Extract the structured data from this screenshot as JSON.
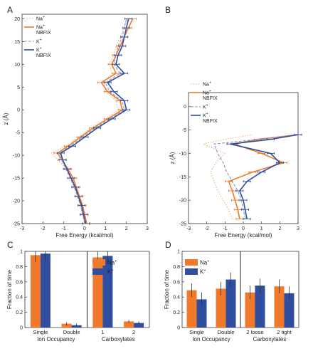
{
  "colors": {
    "orange": "#f07a2b",
    "blue": "#2f4e9f",
    "dashed_blue": "#8c96b8",
    "light_orange": "#f0b27a",
    "axis": "#333333"
  },
  "chart_data": [
    {
      "panel": "A",
      "type": "line",
      "xlabel": "Free Energy (kcal/mol)",
      "ylabel": "z (Å)",
      "xlim": [
        -3,
        3
      ],
      "ylim": [
        -25,
        21
      ],
      "xticks": [
        "-3",
        "-2",
        "-1",
        "0",
        "1",
        "2",
        "3"
      ],
      "yticks": [
        "-25",
        "-20",
        "-15",
        "-10",
        "-5",
        "0",
        "5",
        "10",
        "15",
        "20"
      ],
      "legend_position": "top-left",
      "z": [
        -25,
        -23,
        -21,
        -19,
        -17,
        -15,
        -13,
        -11,
        -9.5,
        -8,
        -6,
        -4,
        -2,
        0,
        2,
        4,
        6,
        8,
        10,
        12,
        14,
        16,
        18,
        20
      ],
      "series": [
        {
          "name": "Na+",
          "style": "dotted-orange",
          "values": [
            0,
            -0.1,
            -0.2,
            -0.3,
            -0.45,
            -0.6,
            -0.85,
            -1.3,
            -1.6,
            -0.9,
            -0.3,
            0.3,
            1.0,
            1.6,
            1.5,
            1.0,
            0.9,
            1.3,
            1.2,
            1.4,
            1.5,
            1.7,
            1.9,
            2.0
          ]
        },
        {
          "name": "Na+",
          "name2": "NBFIX",
          "style": "solid-orange",
          "values": [
            0.1,
            0,
            -0.1,
            -0.25,
            -0.4,
            -0.55,
            -0.8,
            -1.1,
            -1.3,
            -0.8,
            -0.2,
            0.4,
            1.1,
            1.8,
            1.7,
            1.1,
            0.8,
            1.5,
            1.3,
            1.5,
            1.7,
            1.9,
            2.1,
            2.3
          ]
        },
        {
          "name": "K+",
          "style": "dashed-blue",
          "values": [
            0,
            -0.1,
            -0.2,
            -0.35,
            -0.5,
            -0.7,
            -0.9,
            -1.1,
            -1.2,
            -0.7,
            -0.1,
            0.5,
            1.2,
            1.9,
            1.8,
            1.2,
            1.0,
            1.7,
            1.4,
            1.5,
            1.6,
            1.8,
            1.9,
            2.0
          ]
        },
        {
          "name": "K+",
          "name2": "NBFIX",
          "style": "solid-blue",
          "values": [
            0.05,
            -0.05,
            -0.15,
            -0.3,
            -0.45,
            -0.65,
            -0.85,
            -1.05,
            -1.15,
            -0.6,
            0,
            0.6,
            1.3,
            2.0,
            1.9,
            1.4,
            1.1,
            1.9,
            1.5,
            1.6,
            1.8,
            1.9,
            2.0,
            2.1
          ]
        }
      ]
    },
    {
      "panel": "B",
      "type": "line",
      "xlabel": "Free Energy (kcal/mol)",
      "ylabel": "z (Å)",
      "xlim": [
        -3,
        3
      ],
      "ylim": [
        -25,
        3
      ],
      "xticks": [
        "-3",
        "-2",
        "-1",
        "0",
        "1",
        "2",
        "3"
      ],
      "yticks": [
        "-25",
        "-20",
        "-15",
        "-10",
        "-5",
        "0"
      ],
      "legend_position": "top-left",
      "z": [
        -24,
        -22,
        -20,
        -18,
        -16,
        -14,
        -12,
        -10,
        -8,
        -7,
        -6
      ],
      "series": [
        {
          "name": "Na+",
          "style": "dotted-orange",
          "values": [
            -0.6,
            -0.8,
            -1.1,
            -1.4,
            -1.6,
            -1.8,
            -1.5,
            -1.0,
            -2.2,
            -1.0,
            0.5
          ]
        },
        {
          "name": "Na+",
          "name2": "NBFIX",
          "style": "solid-orange",
          "values": [
            -0.2,
            -0.3,
            -0.45,
            -0.6,
            -0.8,
            0.5,
            2.2,
            1.0,
            -0.5,
            0.8,
            3
          ]
        },
        {
          "name": "K+",
          "style": "dashed-blue",
          "values": [
            0.1,
            0,
            -0.1,
            -0.3,
            -0.6,
            -0.9,
            -1.1,
            -1.4,
            -1.6,
            0.8,
            3
          ]
        },
        {
          "name": "K+",
          "name2": "NBFIX",
          "style": "solid-blue",
          "values": [
            0.2,
            0.1,
            0,
            -0.2,
            0.2,
            1.0,
            2.0,
            1.5,
            -0.7,
            1.5,
            3
          ]
        }
      ]
    },
    {
      "panel": "C",
      "type": "bar",
      "ylabel": "Fraction of time",
      "ylim": [
        0,
        1
      ],
      "yticks": [
        "0",
        "0.2",
        "0.4",
        "0.6",
        "0.8",
        "1"
      ],
      "legend": [
        "Na+",
        "K+"
      ],
      "groups": [
        {
          "title": "Ion Occupancy",
          "categories": [
            "Single",
            "Double"
          ],
          "series": [
            {
              "name": "Na+",
              "values": [
                0.95,
                0.05
              ]
            },
            {
              "name": "K+",
              "values": [
                0.97,
                0.03
              ]
            }
          ]
        },
        {
          "title": "Carboxylates",
          "categories": [
            "1",
            "2"
          ],
          "series": [
            {
              "name": "Na+",
              "values": [
                0.92,
                0.08
              ]
            },
            {
              "name": "K+",
              "values": [
                0.94,
                0.06
              ]
            }
          ]
        }
      ]
    },
    {
      "panel": "D",
      "type": "bar",
      "ylabel": "Fraction of time",
      "ylim": [
        0,
        1
      ],
      "yticks": [
        "0",
        "0.2",
        "0.4",
        "0.6",
        "0.8",
        "1"
      ],
      "legend": [
        "Na+",
        "K+"
      ],
      "groups": [
        {
          "title": "Ion Occupancy",
          "categories": [
            "Single",
            "Double"
          ],
          "series": [
            {
              "name": "Na+",
              "values": [
                0.49,
                0.51
              ]
            },
            {
              "name": "K+",
              "values": [
                0.37,
                0.63
              ]
            }
          ]
        },
        {
          "title": "Carboxylates",
          "categories": [
            "2 loose",
            "2 tight"
          ],
          "series": [
            {
              "name": "Na+",
              "values": [
                0.46,
                0.54
              ]
            },
            {
              "name": "K+",
              "values": [
                0.55,
                0.45
              ]
            }
          ]
        }
      ]
    }
  ]
}
